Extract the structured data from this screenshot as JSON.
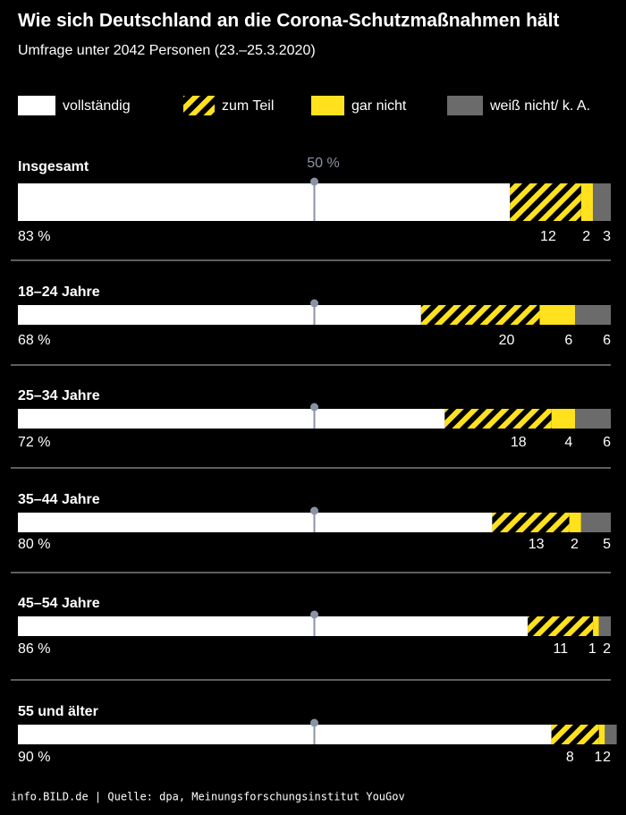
{
  "chart_data": {
    "type": "stacked-bar-horizontal",
    "title": "Wie sich Deutschland an die Corona-Schutzmaßnahmen hält",
    "subtitle": "Umfrage unter 2042 Personen (23.–25.3.2020)",
    "source": "info.BILD.de | Quelle: dpa, Meinungsforschungsinstitut YouGov",
    "categories": [
      "Insgesamt",
      "18–24 Jahre",
      "25–34 Jahre",
      "35–44 Jahre",
      "45–54 Jahre",
      "55 und älter"
    ],
    "series": [
      {
        "name": "vollständig",
        "color": "#ffffff",
        "values": [
          83,
          68,
          72,
          80,
          86,
          90
        ],
        "value_labels": [
          "83 %",
          "68 %",
          "72 %",
          "80 %",
          "86 %",
          "90 %"
        ]
      },
      {
        "name": "zum Teil",
        "color": "#ffe11e",
        "pattern": "hatch",
        "values": [
          12,
          20,
          18,
          13,
          11,
          8
        ]
      },
      {
        "name": "gar nicht",
        "color": "#ffe11e",
        "values": [
          2,
          6,
          4,
          2,
          1,
          1
        ]
      },
      {
        "name": "weiß nicht/ k. A.",
        "color": "#6b6b6b",
        "values": [
          3,
          6,
          6,
          5,
          2,
          2
        ]
      }
    ],
    "xlim": [
      0,
      100
    ],
    "reference": {
      "value": 50,
      "label": "50 %"
    }
  }
}
